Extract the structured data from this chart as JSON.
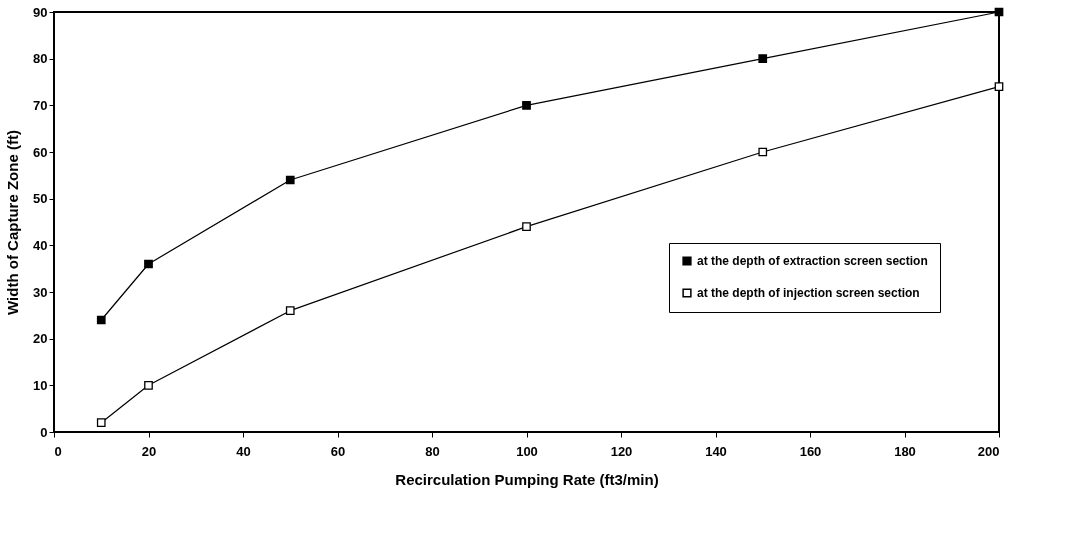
{
  "chart_data": {
    "type": "line",
    "xlabel": "Recirculation Pumping Rate (ft3/min)",
    "ylabel": "Width of Capture Zone (ft)",
    "x": [
      10,
      20,
      50,
      100,
      150,
      200
    ],
    "series": [
      {
        "name": "at the depth of extraction screen section",
        "color": "#000000",
        "marker": "square",
        "values": [
          24,
          36,
          54,
          70,
          80,
          90
        ]
      },
      {
        "name": "at the depth of injection screen section",
        "color": "#000000",
        "marker": "square_open",
        "values": [
          2,
          10,
          26,
          44,
          60,
          74
        ]
      }
    ],
    "xlim": [
      0,
      200
    ],
    "ylim": [
      0,
      90
    ],
    "xticks": [
      0,
      20,
      40,
      60,
      80,
      100,
      120,
      140,
      160,
      180,
      200
    ],
    "yticks": [
      0,
      10,
      20,
      30,
      40,
      50,
      60,
      70,
      80,
      90
    ],
    "grid": false,
    "legend": "right",
    "marker": "square",
    "line_style": "solid"
  }
}
